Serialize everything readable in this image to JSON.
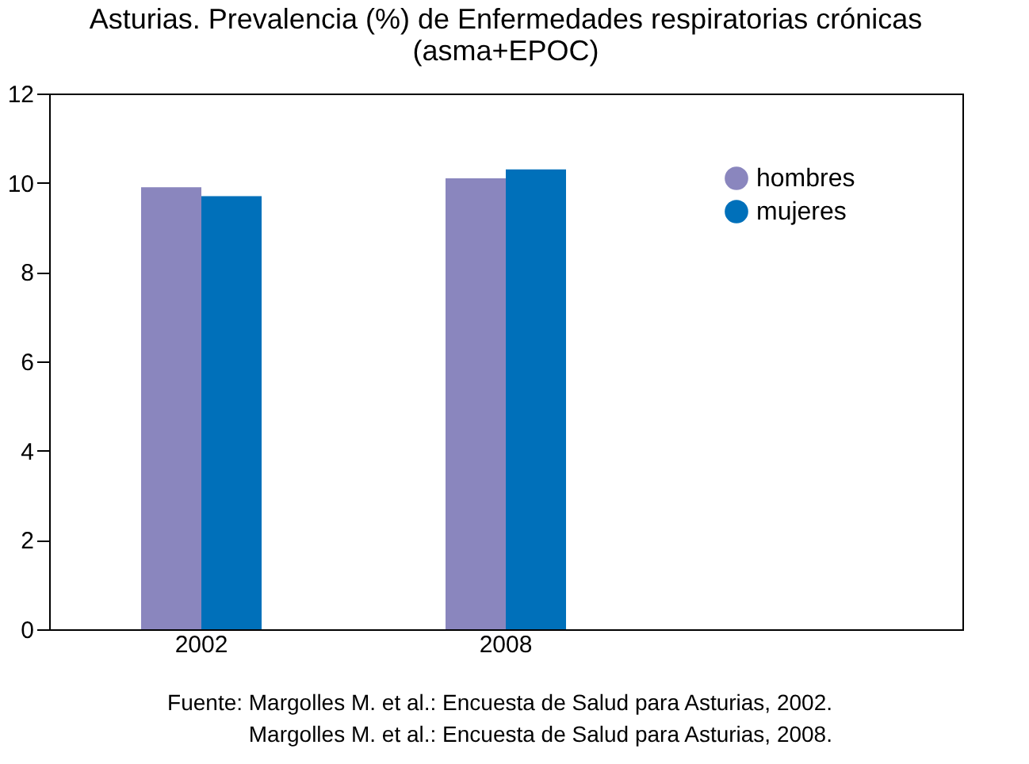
{
  "chart_data": {
    "type": "bar",
    "title": [
      "Asturias. Prevalencia (%) de Enfermedades respiratorias crónicas",
      "(asma+EPOC)"
    ],
    "categories": [
      "2002",
      "2008",
      null
    ],
    "series": [
      {
        "name": "hombres",
        "color": "#8a86be",
        "values": [
          9.9,
          10.1,
          null
        ]
      },
      {
        "name": "mujeres",
        "color": "#0070ba",
        "values": [
          9.7,
          10.3,
          null
        ]
      }
    ],
    "ylim": [
      0,
      12
    ],
    "yticks": [
      0,
      2,
      4,
      6,
      8,
      10,
      12
    ],
    "grid": false,
    "legend": "top right",
    "annotations": [
      "Fuente: Margolles M. et al.: Encuesta de Salud para Asturias, 2002.",
      "Margolles M. et al.: Encuesta de Salud para Asturias, 2008."
    ]
  }
}
